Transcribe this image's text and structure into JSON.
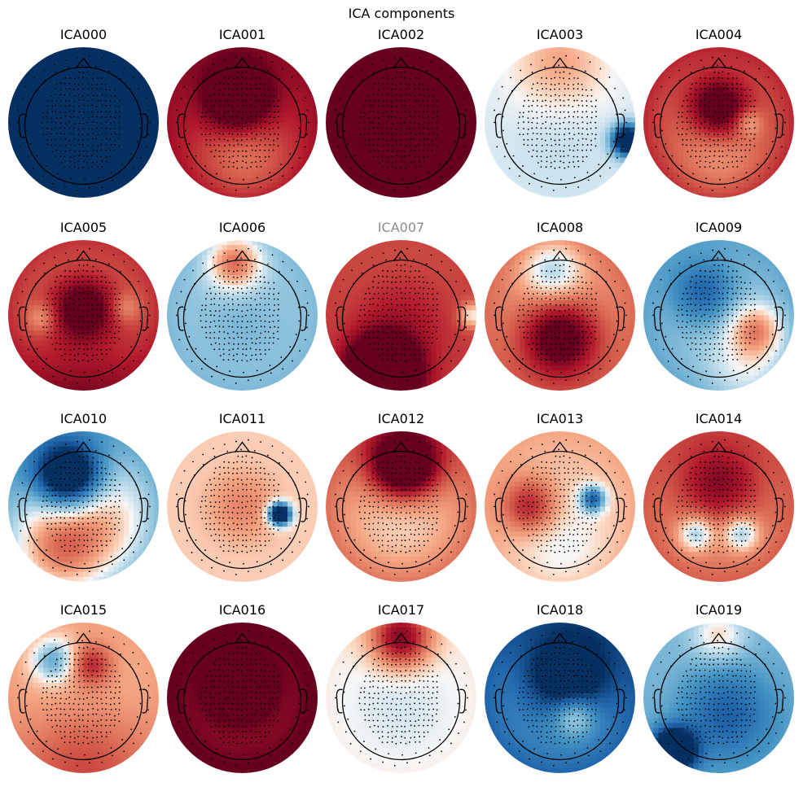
{
  "title": "ICA components",
  "components": [
    {
      "name": "ICA000",
      "excluded": false,
      "blobs": [
        [
          0.5,
          0.35,
          0.32,
          0.95
        ],
        [
          0.5,
          0.6,
          0.3,
          0.7
        ]
      ],
      "base": -0.85,
      "sensorBlobs": []
    },
    {
      "name": "ICA001",
      "excluded": false,
      "blobs": [
        [
          0.47,
          0.32,
          0.14,
          -0.95
        ],
        [
          0.5,
          0.45,
          0.3,
          -0.4
        ],
        [
          0.52,
          0.72,
          0.22,
          0.3
        ]
      ],
      "base": 0.75
    },
    {
      "name": "ICA002",
      "excluded": false,
      "blobs": [
        [
          0.5,
          0.42,
          0.32,
          -1.2
        ],
        [
          0.5,
          0.55,
          0.25,
          -0.3
        ]
      ],
      "base": 0.9
    },
    {
      "name": "ICA003",
      "excluded": false,
      "blobs": [
        [
          0.95,
          0.62,
          0.07,
          1.5
        ],
        [
          0.5,
          0.1,
          0.2,
          -0.3
        ],
        [
          0.5,
          0.65,
          0.25,
          0.08
        ]
      ],
      "base": -0.05
    },
    {
      "name": "ICA004",
      "excluded": false,
      "blobs": [
        [
          0.5,
          0.4,
          0.14,
          -0.8
        ],
        [
          0.7,
          0.5,
          0.06,
          0.3
        ],
        [
          0.5,
          0.8,
          0.2,
          0.15
        ]
      ],
      "base": 0.7
    },
    {
      "name": "ICA005",
      "excluded": false,
      "blobs": [
        [
          0.5,
          0.45,
          0.15,
          -0.75
        ],
        [
          0.22,
          0.52,
          0.07,
          0.3
        ],
        [
          0.78,
          0.45,
          0.07,
          0.25
        ],
        [
          0.5,
          0.9,
          0.3,
          -0.3
        ]
      ],
      "base": 0.65
    },
    {
      "name": "ICA006",
      "excluded": false,
      "blobs": [
        [
          0.45,
          0.15,
          0.12,
          -0.7
        ],
        [
          0.5,
          0.55,
          0.2,
          0.15
        ]
      ],
      "base": -0.3
    },
    {
      "name": "ICA007",
      "excluded": true,
      "blobs": [
        [
          0.38,
          0.88,
          0.15,
          -1.6
        ],
        [
          0.5,
          0.55,
          0.3,
          -0.5
        ],
        [
          0.98,
          0.5,
          0.06,
          0.6
        ]
      ],
      "base": 0.5
    },
    {
      "name": "ICA008",
      "excluded": false,
      "blobs": [
        [
          0.45,
          0.2,
          0.14,
          0.5
        ],
        [
          0.5,
          0.65,
          0.18,
          -0.9
        ]
      ],
      "base": 0.45
    },
    {
      "name": "ICA009",
      "excluded": false,
      "blobs": [
        [
          0.75,
          0.6,
          0.12,
          -0.6
        ],
        [
          0.4,
          0.35,
          0.15,
          0.5
        ],
        [
          0.7,
          0.9,
          0.2,
          -0.3
        ]
      ],
      "base": -0.4
    },
    {
      "name": "ICA010",
      "excluded": false,
      "blobs": [
        [
          0.4,
          0.3,
          0.16,
          1.4
        ],
        [
          0.5,
          0.62,
          0.3,
          -0.6
        ],
        [
          0.3,
          0.85,
          0.2,
          -0.4
        ]
      ],
      "base": -0.45
    },
    {
      "name": "ICA011",
      "excluded": false,
      "blobs": [
        [
          0.75,
          0.55,
          0.05,
          1.8
        ],
        [
          0.5,
          0.5,
          0.18,
          -0.3
        ]
      ],
      "base": 0.12
    },
    {
      "name": "ICA012",
      "excluded": false,
      "blobs": [
        [
          0.52,
          0.22,
          0.16,
          -1.3
        ],
        [
          0.5,
          0.6,
          0.3,
          0.2
        ]
      ],
      "base": 0.5
    },
    {
      "name": "ICA013",
      "excluded": false,
      "blobs": [
        [
          0.72,
          0.45,
          0.06,
          0.9
        ],
        [
          0.3,
          0.5,
          0.13,
          -0.6
        ],
        [
          0.5,
          0.8,
          0.25,
          0.2
        ]
      ],
      "base": 0.25
    },
    {
      "name": "ICA014",
      "excluded": false,
      "blobs": [
        [
          0.35,
          0.68,
          0.08,
          0.6
        ],
        [
          0.65,
          0.68,
          0.08,
          0.6
        ],
        [
          0.5,
          0.35,
          0.2,
          -0.6
        ]
      ],
      "base": 0.5
    },
    {
      "name": "ICA015",
      "excluded": false,
      "blobs": [
        [
          0.3,
          0.25,
          0.1,
          0.6
        ],
        [
          0.55,
          0.28,
          0.1,
          -0.5
        ],
        [
          0.5,
          0.9,
          0.3,
          -0.35
        ]
      ],
      "base": 0.25
    },
    {
      "name": "ICA016",
      "excluded": false,
      "blobs": [
        [
          0.48,
          0.42,
          0.13,
          -1.1
        ],
        [
          0.5,
          0.5,
          0.3,
          -0.3
        ]
      ],
      "base": 1.0
    },
    {
      "name": "ICA017",
      "excluded": false,
      "blobs": [
        [
          0.5,
          0.1,
          0.14,
          -0.9
        ],
        [
          0.5,
          0.55,
          0.3,
          0.1
        ]
      ],
      "base": 0.05
    },
    {
      "name": "ICA018",
      "excluded": false,
      "blobs": [
        [
          0.55,
          0.35,
          0.2,
          0.9
        ],
        [
          0.6,
          0.62,
          0.1,
          -0.5
        ]
      ],
      "base": -0.75
    },
    {
      "name": "ICA019",
      "excluded": false,
      "blobs": [
        [
          0.2,
          0.85,
          0.1,
          1.4
        ],
        [
          0.55,
          0.6,
          0.25,
          0.6
        ],
        [
          0.5,
          0.08,
          0.12,
          -0.4
        ]
      ],
      "base": -0.3
    }
  ]
}
